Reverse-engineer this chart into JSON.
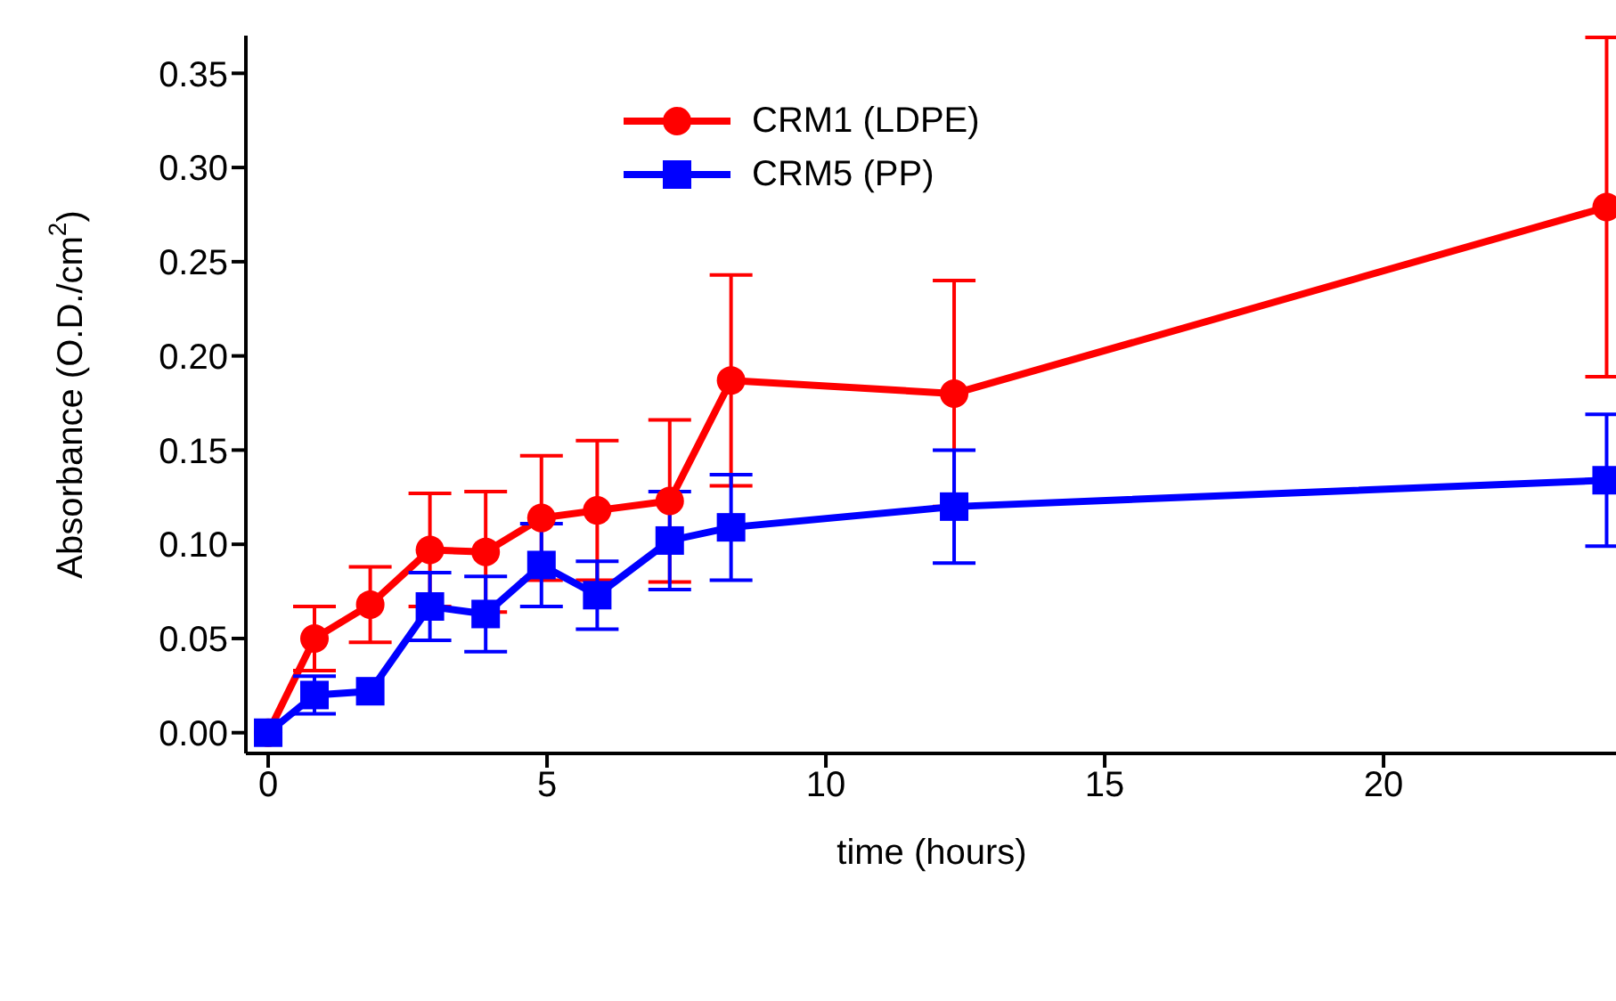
{
  "chart_data": {
    "type": "line",
    "xlabel": "time (hours)",
    "ylabel": "Absorbance (O.D./cm$^{2}$)",
    "x": [
      0,
      0.83,
      1.83,
      2.9,
      3.9,
      4.9,
      5.9,
      7.2,
      8.3,
      12.3,
      24
    ],
    "series": [
      {
        "name": "CRM1 (LDPE)",
        "color": "#ff0000",
        "marker": "circle",
        "values": [
          0,
          0.05,
          0.068,
          0.097,
          0.096,
          0.114,
          0.118,
          0.123,
          0.187,
          0.18,
          0.279
        ],
        "errors": [
          null,
          0.017,
          0.02,
          0.03,
          0.032,
          0.033,
          0.037,
          0.043,
          0.056,
          0.06,
          0.09
        ]
      },
      {
        "name": "CRM5 (PP)",
        "color": "#0000ff",
        "marker": "square",
        "values": [
          0,
          0.02,
          0.022,
          0.067,
          0.063,
          0.089,
          0.073,
          0.102,
          0.109,
          0.12,
          0.134
        ],
        "errors": [
          null,
          0.01,
          null,
          0.018,
          0.02,
          0.022,
          0.018,
          0.026,
          0.028,
          0.03,
          0.035
        ]
      }
    ],
    "xlim": [
      -0.4,
      24.2
    ],
    "xticks": [
      0,
      5,
      10,
      15,
      20
    ],
    "ylim": [
      -0.011,
      0.37
    ],
    "yticks": [
      {
        "value": 0,
        "label": "0.00"
      },
      0.05,
      {
        "value": 0.1,
        "label": "0.10"
      },
      0.15,
      {
        "value": 0.2,
        "label": "0.20"
      },
      0.25,
      {
        "value": 0.3,
        "label": "0.30"
      },
      0.35
    ],
    "grid": false,
    "legend": "top",
    "line_style": "solid"
  }
}
